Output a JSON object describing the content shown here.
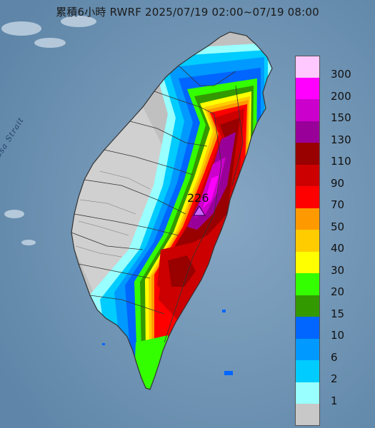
{
  "title": "累積6小時 RWRF 2025/07/19 02:00~07/19 08:00",
  "sea_label": "Formosa Strait",
  "max_value": "226",
  "colors": {
    "sea": "#6f93b3",
    "land_base": "#bfbfbf",
    "border": "#333333"
  },
  "legend": [
    {
      "label": "300",
      "color": "#ffc8ff"
    },
    {
      "label": "200",
      "color": "#ff00ff"
    },
    {
      "label": "150",
      "color": "#cc00cc"
    },
    {
      "label": "130",
      "color": "#990099"
    },
    {
      "label": "110",
      "color": "#990000"
    },
    {
      "label": "90",
      "color": "#cc0000"
    },
    {
      "label": "70",
      "color": "#ff0000"
    },
    {
      "label": "50",
      "color": "#ff9900"
    },
    {
      "label": "40",
      "color": "#ffcc00"
    },
    {
      "label": "30",
      "color": "#ffff00"
    },
    {
      "label": "20",
      "color": "#33ff00"
    },
    {
      "label": "15",
      "color": "#339900"
    },
    {
      "label": "10",
      "color": "#0066ff"
    },
    {
      "label": "6",
      "color": "#0099ff"
    },
    {
      "label": "2",
      "color": "#00ccff"
    },
    {
      "label": "1",
      "color": "#99ffff"
    },
    {
      "label": "",
      "color": "#c8c8c8"
    }
  ]
}
